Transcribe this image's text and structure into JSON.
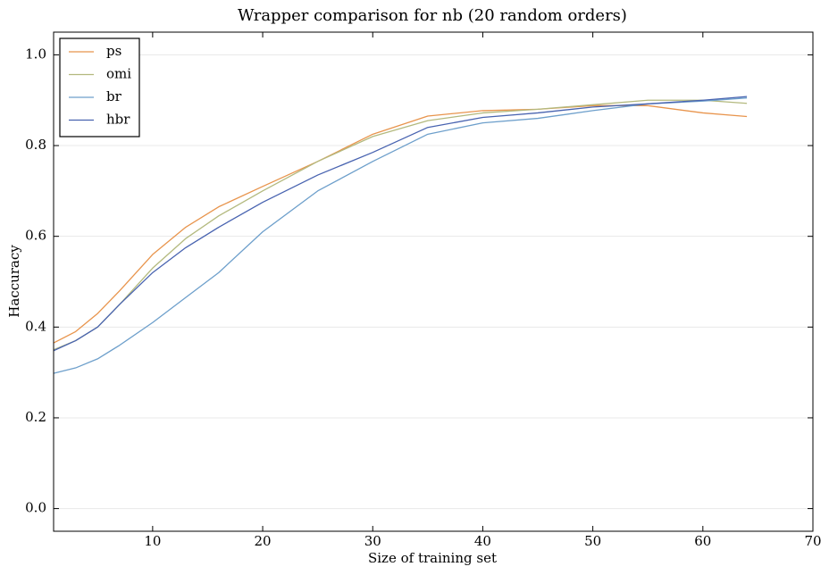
{
  "chart_data": {
    "type": "line",
    "title": "Wrapper comparison for nb (20 random orders)",
    "x_label": "Size of training set",
    "y_label": "Haccuracy",
    "x": [
      1,
      3,
      5,
      7,
      10,
      13,
      16,
      20,
      25,
      30,
      35,
      40,
      45,
      50,
      55,
      60,
      64
    ],
    "series": [
      {
        "name": "ps",
        "color": "#e8944c",
        "values": [
          0.365,
          0.39,
          0.43,
          0.48,
          0.56,
          0.62,
          0.665,
          0.71,
          0.765,
          0.825,
          0.865,
          0.877,
          0.88,
          0.888,
          0.888,
          0.872,
          0.864
        ]
      },
      {
        "name": "omi",
        "color": "#b3b97e",
        "values": [
          0.35,
          0.37,
          0.4,
          0.45,
          0.53,
          0.595,
          0.645,
          0.7,
          0.765,
          0.82,
          0.855,
          0.872,
          0.88,
          0.89,
          0.9,
          0.9,
          0.893
        ]
      },
      {
        "name": "br",
        "color": "#6d9fcb",
        "values": [
          0.298,
          0.31,
          0.33,
          0.36,
          0.41,
          0.465,
          0.52,
          0.61,
          0.7,
          0.765,
          0.825,
          0.85,
          0.86,
          0.877,
          0.892,
          0.898,
          0.905
        ]
      },
      {
        "name": "hbr",
        "color": "#4863b0",
        "values": [
          0.348,
          0.37,
          0.4,
          0.45,
          0.52,
          0.575,
          0.62,
          0.675,
          0.735,
          0.785,
          0.84,
          0.862,
          0.872,
          0.885,
          0.892,
          0.9,
          0.908
        ]
      }
    ],
    "xlim": [
      1,
      70
    ],
    "ylim": [
      -0.05,
      1.05
    ],
    "xticks": [
      10,
      20,
      30,
      40,
      50,
      60,
      70
    ],
    "yticks": [
      {
        "value": 0,
        "label": "0.0"
      },
      0.2,
      0.4,
      0.6,
      0.8,
      {
        "value": 1,
        "label": "1.0"
      }
    ],
    "grid": "y",
    "legend": "upper-left"
  }
}
